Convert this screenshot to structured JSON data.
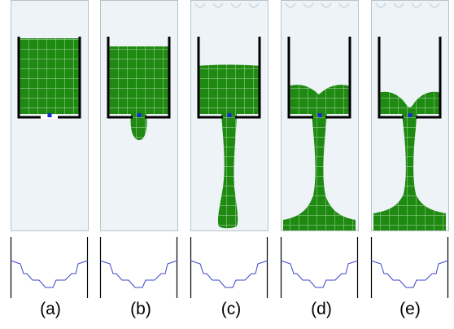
{
  "panels": [
    {
      "label": "(a)",
      "stage": 0
    },
    {
      "label": "(b)",
      "stage": 1
    },
    {
      "label": "(c)",
      "stage": 2
    },
    {
      "label": "(d)",
      "stage": 3
    },
    {
      "label": "(e)",
      "stage": 4
    }
  ],
  "colors": {
    "fluid": "#1f8a12",
    "fluid_grid": "#a9d3a0",
    "container": "#000000",
    "marker": "#1a2bd6",
    "panel_bg": "#edf3f6",
    "panel_border": "#b8c3c8",
    "profile_line": "#3a44c8"
  }
}
